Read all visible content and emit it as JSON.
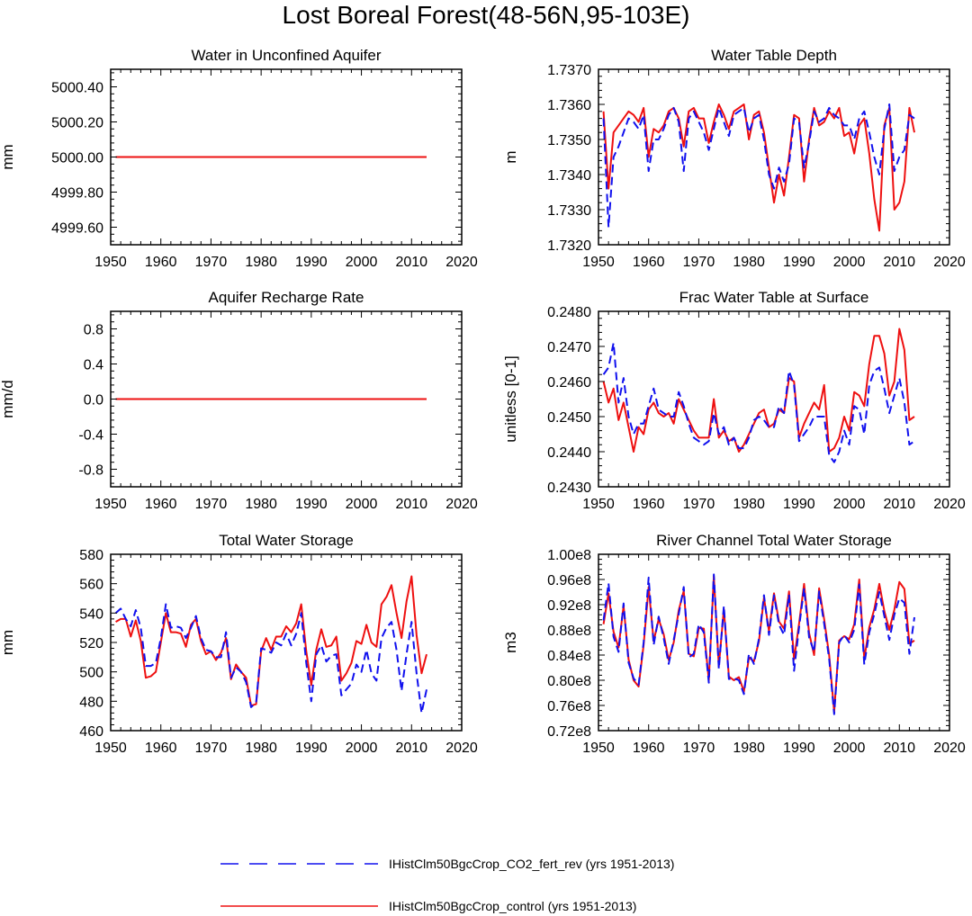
{
  "figure_title": "Lost Boreal Forest(48-56N,95-103E)",
  "colors": {
    "co2": "#1010ee",
    "control": "#ee1010"
  },
  "legend": [
    {
      "key": "co2",
      "label": "IHistClm50BgcCrop_CO2_fert_rev (yrs 1951-2013)"
    },
    {
      "key": "control",
      "label": "IHistClm50BgcCrop_control (yrs 1951-2013)"
    }
  ],
  "chart_data": [
    {
      "type": "line",
      "title": "Water in Unconfined Aquifer",
      "xlabel": "",
      "ylabel": "mm",
      "xlim": [
        1950,
        2020
      ],
      "ylim": [
        4999.5,
        5000.5
      ],
      "xticks": [
        1950,
        1960,
        1970,
        1980,
        1990,
        2000,
        2010,
        2020
      ],
      "yticks": [
        4999.6,
        4999.8,
        5000.0,
        5000.2,
        5000.4
      ],
      "ytick_labels": [
        "4999.60",
        "4999.80",
        "5000.00",
        "5000.20",
        "5000.40"
      ],
      "x": [
        1951,
        2013
      ],
      "series": [
        {
          "key": "co2",
          "values": [
            5000.0,
            5000.0
          ]
        },
        {
          "key": "control",
          "values": [
            5000.0,
            5000.0
          ]
        }
      ]
    },
    {
      "type": "line",
      "title": "Water Table Depth",
      "xlabel": "",
      "ylabel": "m",
      "xlim": [
        1950,
        2020
      ],
      "ylim": [
        1.732,
        1.737
      ],
      "xticks": [
        1950,
        1960,
        1970,
        1980,
        1990,
        2000,
        2010,
        2020
      ],
      "yticks": [
        1.732,
        1.733,
        1.734,
        1.735,
        1.736,
        1.737
      ],
      "ytick_labels": [
        "1.7320",
        "1.7330",
        "1.7340",
        "1.7350",
        "1.7360",
        "1.7370"
      ],
      "x_start": 1951,
      "series": [
        {
          "key": "control",
          "values": [
            1.7358,
            1.7336,
            1.7352,
            1.7354,
            1.7356,
            1.7358,
            1.7357,
            1.7355,
            1.7359,
            1.7345,
            1.7353,
            1.7352,
            1.7354,
            1.7358,
            1.7359,
            1.7356,
            1.7348,
            1.7358,
            1.7359,
            1.7356,
            1.7356,
            1.7349,
            1.7355,
            1.736,
            1.7357,
            1.7353,
            1.7358,
            1.7359,
            1.736,
            1.735,
            1.7357,
            1.7358,
            1.7352,
            1.7342,
            1.7332,
            1.734,
            1.7334,
            1.7345,
            1.7357,
            1.7356,
            1.7338,
            1.735,
            1.7359,
            1.7354,
            1.7355,
            1.7358,
            1.7356,
            1.7359,
            1.7351,
            1.7352,
            1.7346,
            1.7354,
            1.7356,
            1.7346,
            1.7333,
            1.7324,
            1.7354,
            1.7359,
            1.733,
            1.7332,
            1.7338,
            1.7359,
            1.7352
          ]
        },
        {
          "key": "co2",
          "values": [
            1.7356,
            1.7325,
            1.7345,
            1.7348,
            1.7352,
            1.7356,
            1.7355,
            1.7353,
            1.7357,
            1.7341,
            1.735,
            1.735,
            1.7353,
            1.7357,
            1.7359,
            1.7355,
            1.7341,
            1.7356,
            1.7358,
            1.7355,
            1.7352,
            1.7347,
            1.7353,
            1.7359,
            1.7355,
            1.7351,
            1.7357,
            1.7358,
            1.7359,
            1.7352,
            1.7356,
            1.7357,
            1.735,
            1.734,
            1.7336,
            1.7342,
            1.7338,
            1.7343,
            1.7356,
            1.7355,
            1.7342,
            1.7349,
            1.7358,
            1.7355,
            1.7356,
            1.7359,
            1.7357,
            1.7356,
            1.7354,
            1.7354,
            1.735,
            1.7356,
            1.7358,
            1.7352,
            1.7345,
            1.734,
            1.7353,
            1.736,
            1.7341,
            1.7345,
            1.7347,
            1.7357,
            1.7356
          ]
        }
      ]
    },
    {
      "type": "line",
      "title": "Aquifer Recharge Rate",
      "xlabel": "",
      "ylabel": "mm/d",
      "xlim": [
        1950,
        2020
      ],
      "ylim": [
        -1.0,
        1.0
      ],
      "xticks": [
        1950,
        1960,
        1970,
        1980,
        1990,
        2000,
        2010,
        2020
      ],
      "yticks": [
        -0.8,
        -0.4,
        0.0,
        0.4,
        0.8
      ],
      "ytick_labels": [
        "-0.8",
        "-0.4",
        "0.0",
        "0.4",
        "0.8"
      ],
      "x": [
        1951,
        2013
      ],
      "series": [
        {
          "key": "co2",
          "values": [
            0.0,
            0.0
          ]
        },
        {
          "key": "control",
          "values": [
            0.0,
            0.0
          ]
        }
      ]
    },
    {
      "type": "line",
      "title": "Frac Water Table at Surface",
      "xlabel": "",
      "ylabel": "unitless [0-1]",
      "xlim": [
        1950,
        2020
      ],
      "ylim": [
        0.243,
        0.248
      ],
      "xticks": [
        1950,
        1960,
        1970,
        1980,
        1990,
        2000,
        2010,
        2020
      ],
      "yticks": [
        0.243,
        0.244,
        0.245,
        0.246,
        0.247,
        0.248
      ],
      "ytick_labels": [
        "0.2430",
        "0.2440",
        "0.2450",
        "0.2460",
        "0.2470",
        "0.2480"
      ],
      "x_start": 1951,
      "series": [
        {
          "key": "control",
          "values": [
            0.246,
            0.2454,
            0.2458,
            0.2449,
            0.2454,
            0.2447,
            0.244,
            0.2447,
            0.2445,
            0.2452,
            0.2454,
            0.2451,
            0.245,
            0.2451,
            0.2448,
            0.2455,
            0.2452,
            0.2449,
            0.2446,
            0.2444,
            0.2444,
            0.2444,
            0.2455,
            0.2444,
            0.2446,
            0.2443,
            0.2444,
            0.244,
            0.2442,
            0.2445,
            0.2448,
            0.2451,
            0.2452,
            0.2447,
            0.2448,
            0.2452,
            0.2451,
            0.2461,
            0.246,
            0.2444,
            0.2448,
            0.2451,
            0.2454,
            0.2452,
            0.2459,
            0.244,
            0.2441,
            0.2444,
            0.245,
            0.2446,
            0.2457,
            0.2456,
            0.2453,
            0.2465,
            0.2473,
            0.2473,
            0.2468,
            0.2456,
            0.246,
            0.2475,
            0.2469,
            0.2449,
            0.245
          ]
        },
        {
          "key": "co2",
          "values": [
            0.2462,
            0.2464,
            0.2471,
            0.2454,
            0.2461,
            0.245,
            0.2445,
            0.2448,
            0.2448,
            0.2453,
            0.2458,
            0.2452,
            0.2451,
            0.245,
            0.245,
            0.2457,
            0.2453,
            0.2448,
            0.2444,
            0.2443,
            0.2442,
            0.2443,
            0.2451,
            0.2445,
            0.2447,
            0.2442,
            0.2444,
            0.2441,
            0.2441,
            0.2444,
            0.2449,
            0.245,
            0.2449,
            0.2447,
            0.2447,
            0.2453,
            0.2451,
            0.2463,
            0.2459,
            0.2443,
            0.2445,
            0.2447,
            0.245,
            0.245,
            0.245,
            0.2439,
            0.2437,
            0.244,
            0.2446,
            0.2442,
            0.2453,
            0.2452,
            0.2445,
            0.2459,
            0.2463,
            0.2464,
            0.2458,
            0.2451,
            0.2456,
            0.2461,
            0.2454,
            0.2442,
            0.2443
          ]
        }
      ]
    },
    {
      "type": "line",
      "title": "Total Water Storage",
      "xlabel": "",
      "ylabel": "mm",
      "xlim": [
        1950,
        2020
      ],
      "ylim": [
        460,
        580
      ],
      "xticks": [
        1950,
        1960,
        1970,
        1980,
        1990,
        2000,
        2010,
        2020
      ],
      "yticks": [
        460,
        480,
        500,
        520,
        540,
        560,
        580
      ],
      "ytick_labels": [
        "460",
        "480",
        "500",
        "520",
        "540",
        "560",
        "580"
      ],
      "x_start": 1951,
      "series": [
        {
          "key": "control",
          "values": [
            534,
            536,
            536,
            524,
            535,
            521,
            496,
            497,
            500,
            520,
            540,
            527,
            527,
            526,
            517,
            532,
            536,
            521,
            512,
            514,
            508,
            513,
            523,
            495,
            505,
            500,
            496,
            477,
            478,
            514,
            523,
            515,
            524,
            524,
            531,
            527,
            533,
            546,
            514,
            491,
            515,
            529,
            517,
            518,
            524,
            494,
            499,
            506,
            521,
            519,
            532,
            520,
            517,
            546,
            551,
            559,
            540,
            523,
            548,
            565,
            525,
            499,
            512
          ]
        },
        {
          "key": "co2",
          "values": [
            540,
            543,
            536,
            531,
            542,
            530,
            504,
            504,
            506,
            523,
            546,
            530,
            531,
            530,
            523,
            530,
            538,
            523,
            515,
            514,
            510,
            510,
            527,
            496,
            503,
            500,
            493,
            476,
            479,
            516,
            515,
            513,
            520,
            518,
            526,
            518,
            526,
            540,
            506,
            480,
            512,
            518,
            507,
            511,
            512,
            484,
            488,
            492,
            505,
            500,
            515,
            499,
            494,
            523,
            530,
            534,
            515,
            487,
            512,
            534,
            499,
            472,
            488
          ]
        }
      ]
    },
    {
      "type": "line",
      "title": "River Channel Total Water Storage",
      "xlabel": "",
      "ylabel": "m3",
      "xlim": [
        1950,
        2020
      ],
      "ylim": [
        72000000.0,
        100000000.0
      ],
      "xticks": [
        1950,
        1960,
        1970,
        1980,
        1990,
        2000,
        2010,
        2020
      ],
      "yticks": [
        72000000.0,
        76000000.0,
        80000000.0,
        84000000.0,
        88000000.0,
        92000000.0,
        96000000.0,
        100000000.0
      ],
      "ytick_labels": [
        "0.72e8",
        "0.76e8",
        "0.80e8",
        "0.84e8",
        "0.88e8",
        "0.92e8",
        "0.96e8",
        "1.00e8"
      ],
      "x_start": 1951,
      "series": [
        {
          "key": "control",
          "values": [
            88900000.0,
            93800000.0,
            87700000.0,
            85200000.0,
            91800000.0,
            83300000.0,
            80000000.0,
            79000000.0,
            85600000.0,
            94800000.0,
            86200000.0,
            89700000.0,
            87300000.0,
            83200000.0,
            86000000.0,
            91100000.0,
            94200000.0,
            84200000.0,
            83800000.0,
            88300000.0,
            88200000.0,
            80000000.0,
            96500000.0,
            82200000.0,
            91300000.0,
            80600000.0,
            80000000.0,
            80500000.0,
            78200000.0,
            83600000.0,
            83000000.0,
            86200000.0,
            93100000.0,
            87800000.0,
            93800000.0,
            89300000.0,
            88200000.0,
            94100000.0,
            83300000.0,
            89000000.0,
            95300000.0,
            87500000.0,
            84000000.0,
            94600000.0,
            89700000.0,
            84000000.0,
            75000000.0,
            86300000.0,
            87000000.0,
            86500000.0,
            88900000.0,
            96000000.0,
            83400000.0,
            88400000.0,
            91300000.0,
            95300000.0,
            91000000.0,
            88000000.0,
            91200000.0,
            95600000.0,
            94500000.0,
            85800000.0,
            86300000.0
          ]
        },
        {
          "key": "co2",
          "values": [
            89500000.0,
            95400000.0,
            86900000.0,
            84500000.0,
            92200000.0,
            82800000.0,
            80300000.0,
            79300000.0,
            86000000.0,
            96300000.0,
            85600000.0,
            90100000.0,
            86700000.0,
            82600000.0,
            86400000.0,
            90500000.0,
            94800000.0,
            83600000.0,
            84200000.0,
            88900000.0,
            87600000.0,
            79600000.0,
            96800000.0,
            81800000.0,
            91800000.0,
            80200000.0,
            80300000.0,
            80000000.0,
            77800000.0,
            84200000.0,
            82600000.0,
            86600000.0,
            93500000.0,
            87200000.0,
            93500000.0,
            88800000.0,
            87200000.0,
            93600000.0,
            81500000.0,
            88400000.0,
            94600000.0,
            86800000.0,
            84500000.0,
            94100000.0,
            89000000.0,
            83400000.0,
            74600000.0,
            86000000.0,
            87200000.0,
            86000000.0,
            88000000.0,
            95200000.0,
            82500000.0,
            87600000.0,
            90500000.0,
            94000000.0,
            90200000.0,
            86400000.0,
            90400000.0,
            93000000.0,
            92300000.0,
            84200000.0,
            90000000.0
          ]
        }
      ]
    }
  ]
}
